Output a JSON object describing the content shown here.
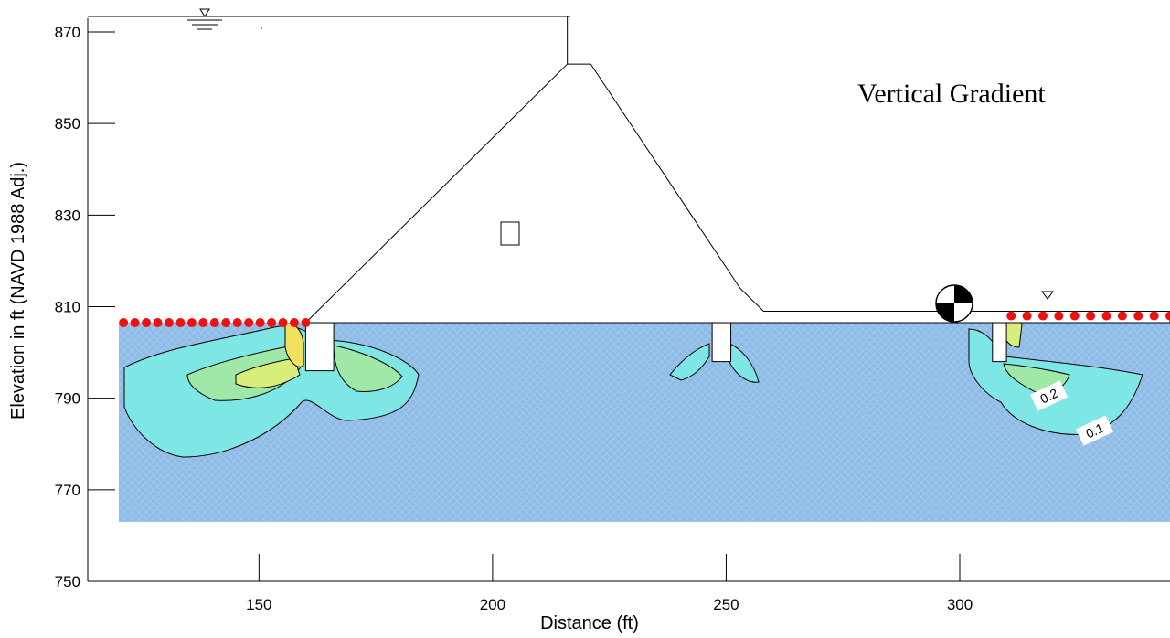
{
  "figure": {
    "title": "Vertical Gradient",
    "xlabel": "Distance (ft)",
    "ylabel": "Elevation in ft (NAVD 1988 Adj.)",
    "x_ticks": [
      150,
      200,
      250,
      300
    ],
    "y_ticks": [
      750,
      770,
      790,
      810,
      830,
      850,
      870
    ],
    "xlim": [
      120,
      345
    ],
    "ylim": [
      750,
      873
    ],
    "contour_labels": [
      "0.2",
      "0.1"
    ],
    "colors": {
      "foundation": "#8fbce6",
      "contour_low": "#7fe6e6",
      "contour_mid": "#9fe8a8",
      "contour_high": "#d8ee7a",
      "contour_peak": "#f4e060",
      "boundary_dots": "#ee1111",
      "outline": "#000000"
    },
    "boundary_dots": {
      "upstream": {
        "x_start": 121,
        "x_end": 160,
        "count": 17,
        "y": 806.5
      },
      "downstream": {
        "x_start": 311,
        "x_end": 345,
        "count": 11,
        "y": 808
      }
    }
  }
}
